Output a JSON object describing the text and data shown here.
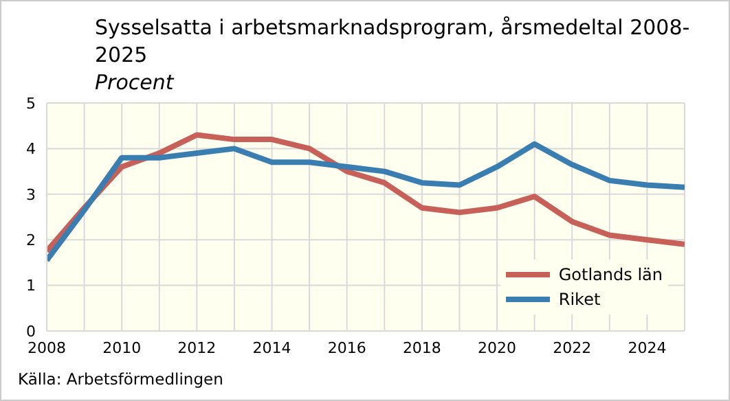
{
  "chart_data": {
    "type": "line",
    "title": "Sysselsatta i arbetsmarknadsprogram, årsmedeltal 2008-2025",
    "subtitle": "Procent",
    "x": [
      2008,
      2009,
      2010,
      2011,
      2012,
      2013,
      2014,
      2015,
      2016,
      2017,
      2018,
      2019,
      2020,
      2021,
      2022,
      2023,
      2024,
      2025
    ],
    "series": [
      {
        "name": "Gotlands län",
        "color": "#c8605a",
        "values": [
          1.75,
          2.7,
          3.6,
          3.9,
          4.3,
          4.2,
          4.2,
          4.0,
          3.5,
          3.25,
          2.7,
          2.6,
          2.7,
          2.95,
          2.4,
          2.1,
          2.0,
          1.9
        ]
      },
      {
        "name": "Riket",
        "color": "#3a7db0",
        "values": [
          1.55,
          2.65,
          3.8,
          3.8,
          3.9,
          4.0,
          3.7,
          3.7,
          3.6,
          3.5,
          3.25,
          3.2,
          3.6,
          4.1,
          3.65,
          3.3,
          3.2,
          3.15
        ]
      }
    ],
    "xlim": [
      2008,
      2025
    ],
    "xticks": [
      2008,
      {
        "value": 2009,
        "label": null
      },
      2010,
      {
        "value": 2011,
        "label": null
      },
      2012,
      {
        "value": 2013,
        "label": null
      },
      2014,
      {
        "value": 2015,
        "label": null
      },
      2016,
      {
        "value": 2017,
        "label": null
      },
      2018,
      {
        "value": 2019,
        "label": null
      },
      2020,
      {
        "value": 2021,
        "label": null
      },
      2022,
      {
        "value": 2023,
        "label": null
      },
      2024,
      {
        "value": 2025,
        "label": null
      }
    ],
    "ylim": [
      0,
      5
    ],
    "yticks": [
      0,
      1,
      2,
      3,
      4,
      5
    ],
    "grid": true,
    "legend": "bottom right",
    "marker": "none",
    "line_style": "solid",
    "annotations": [
      "Källa: Arbetsförmedlingen"
    ]
  }
}
